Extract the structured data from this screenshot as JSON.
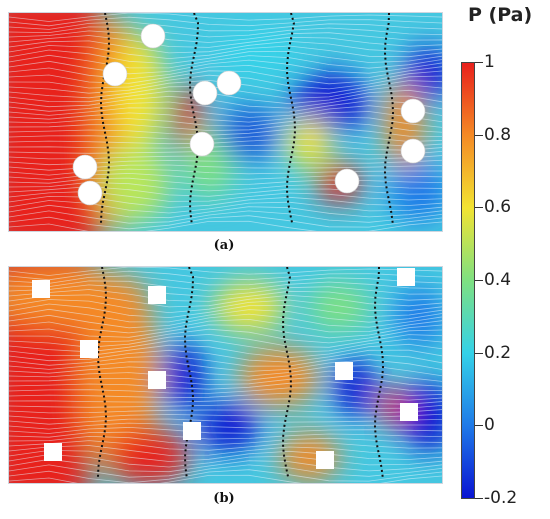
{
  "colorbar": {
    "title": "P (Pa)",
    "min": -0.2,
    "max": 1,
    "tick_labels": [
      "1",
      "0.8",
      "0.6",
      "0.4",
      "0.2",
      "0",
      "-0.2"
    ],
    "tick_values": [
      1,
      0.8,
      0.6,
      0.4,
      0.2,
      0,
      -0.2
    ],
    "colors": [
      "#0a14d2",
      "#1f7ae8",
      "#34d2e8",
      "#7ee081",
      "#f2e332",
      "#f48a25",
      "#e8201c"
    ]
  },
  "panels": [
    {
      "caption": "(a)",
      "obstacle_shape": "circle"
    },
    {
      "caption": "(b)",
      "obstacle_shape": "square"
    }
  ]
}
